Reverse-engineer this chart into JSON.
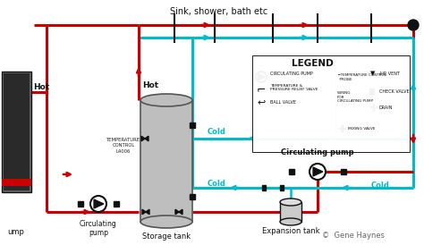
{
  "bg_color": "#ffffff",
  "red_color": "#cc0000",
  "cyan_color": "#00bbcc",
  "black_color": "#111111",
  "light_gray": "#bebebe",
  "dark_gray": "#555555",
  "mid_gray": "#888888",
  "sink_label": "Sink, shower, bath etc",
  "hot_label1": "Hot",
  "hot_label2": "Hot",
  "storage_tank_label": "Storage tank",
  "circ_pump_label1": "Circulating\npump",
  "circ_pump_label2": "Circulating pump",
  "expansion_tank_label": "Expansion tank",
  "temp_control_label": "TEMPERATURE\nCONTROL\nL4006",
  "legend_title": "LEGEND",
  "copyright": "©  Gene Haynes",
  "pump_label": "ump",
  "cold_label1": "Cold",
  "cold_label2": "Cold",
  "cold_label3": "Cold"
}
